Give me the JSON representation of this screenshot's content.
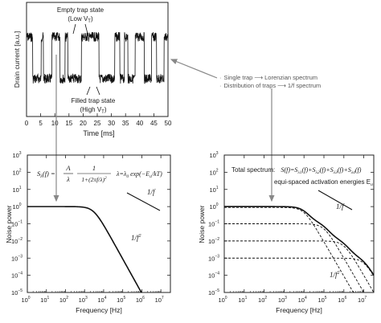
{
  "top_plot": {
    "ylabel": "Drain current [a.u.]",
    "xlabel": "Time [ms]",
    "x_ticks": [
      "0",
      "5",
      "10",
      "15",
      "20",
      "25",
      "30",
      "35",
      "40",
      "45",
      "50"
    ],
    "annotation_empty": "Empty trap state",
    "annotation_empty_sub": "(Low V",
    "annotation_empty_sub_tail": "T",
    "annotation_empty_close": ")",
    "annotation_filled": "Filled trap state",
    "annotation_filled_sub": "(High V",
    "annotation_filled_sub_tail": "T",
    "annotation_filled_close": ")"
  },
  "side_notes": {
    "line1_a": "Single trap",
    "line1_b": "Lorenzian spectrum",
    "line2_a": "Distribution of traps",
    "line2_b": "1/f spectrum"
  },
  "left_plot": {
    "ylabel": "Noise power",
    "xlabel": "Frequency [Hz]",
    "x_exponents": [
      "0",
      "1",
      "2",
      "3",
      "4",
      "5",
      "6",
      "7"
    ],
    "y_exponents": [
      "3",
      "2",
      "1",
      "0",
      "−1",
      "−2",
      "−3",
      "−4",
      "−5"
    ],
    "formula_lhs": "S",
    "formula_lhs_sub": "λ",
    "formula_lhs_arg": "(f) =",
    "formula_num": "A",
    "formula_den": "λ",
    "formula_num2": "1",
    "formula_den2": "1+(2πf/λ)",
    "formula_den2_sup": "2",
    "formula_lambda": "λ=λ",
    "formula_lambda_sub": "0",
    "formula_lambda_tail": " exp(−E",
    "formula_lambda_tail_sub": "a",
    "formula_lambda_end": "/kT)",
    "label_1f": "1/f",
    "label_1f2": "1/f",
    "label_1f2_sup": "2"
  },
  "right_plot": {
    "ylabel": "Noise power",
    "xlabel": "Frequency [Hz]",
    "x_exponents": [
      "0",
      "1",
      "2",
      "3",
      "4",
      "5",
      "6",
      "7"
    ],
    "y_exponents": [
      "3",
      "2",
      "1",
      "0",
      "−1",
      "−2",
      "−3",
      "−4",
      "−5"
    ],
    "total_label": "Total spectrum:",
    "total_formula": "S(f)=S",
    "total_terms": [
      "λ1",
      "λ2",
      "λ3",
      "λ4"
    ],
    "equi_label": "equi-spaced activation energies E",
    "equi_sub": "a",
    "label_1f": "1/f",
    "label_1f2": "1/f",
    "label_1f2_sup": "2"
  },
  "tick_base": "10"
}
